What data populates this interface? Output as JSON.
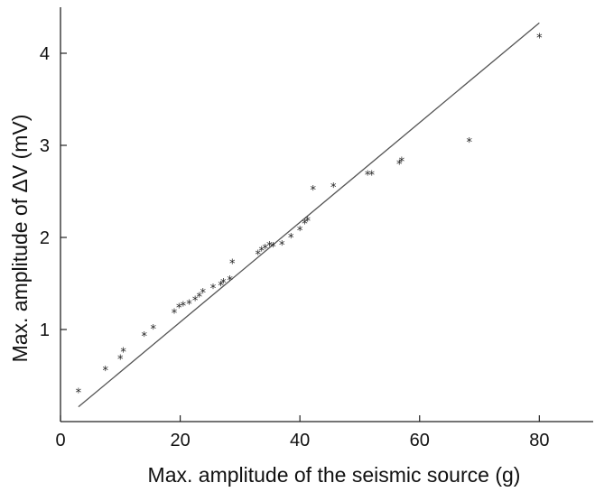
{
  "chart_data": {
    "type": "scatter",
    "title": "",
    "xlabel": "Max. amplitude of the seismic source (g)",
    "ylabel": "Max. amplitude of ΔV (mV)",
    "xlim": [
      0,
      89
    ],
    "ylim": [
      0,
      4.5
    ],
    "x_ticks": [
      0,
      20,
      40,
      60,
      80
    ],
    "y_ticks": [
      1,
      2,
      3,
      4
    ],
    "x_tick_labels": [
      "0",
      "20",
      "40",
      "60",
      "80"
    ],
    "y_tick_labels": [
      "1",
      "2",
      "3",
      "4"
    ],
    "grid": false,
    "marker": "*",
    "points": [
      {
        "x": 3,
        "y": 0.33
      },
      {
        "x": 7.5,
        "y": 0.57
      },
      {
        "x": 10,
        "y": 0.69
      },
      {
        "x": 10.5,
        "y": 0.77
      },
      {
        "x": 14,
        "y": 0.94
      },
      {
        "x": 15.5,
        "y": 1.02
      },
      {
        "x": 19,
        "y": 1.19
      },
      {
        "x": 19.8,
        "y": 1.25
      },
      {
        "x": 20.5,
        "y": 1.27
      },
      {
        "x": 21.5,
        "y": 1.29
      },
      {
        "x": 22.5,
        "y": 1.33
      },
      {
        "x": 23.2,
        "y": 1.37
      },
      {
        "x": 23.8,
        "y": 1.41
      },
      {
        "x": 25.5,
        "y": 1.46
      },
      {
        "x": 26.8,
        "y": 1.49
      },
      {
        "x": 27.2,
        "y": 1.52
      },
      {
        "x": 28.3,
        "y": 1.55
      },
      {
        "x": 28.7,
        "y": 1.73
      },
      {
        "x": 33,
        "y": 1.83
      },
      {
        "x": 33.6,
        "y": 1.87
      },
      {
        "x": 34.2,
        "y": 1.89
      },
      {
        "x": 34.9,
        "y": 1.92
      },
      {
        "x": 35.5,
        "y": 1.91
      },
      {
        "x": 37,
        "y": 1.93
      },
      {
        "x": 38.5,
        "y": 2.01
      },
      {
        "x": 40,
        "y": 2.09
      },
      {
        "x": 40.8,
        "y": 2.16
      },
      {
        "x": 41.3,
        "y": 2.19
      },
      {
        "x": 42.2,
        "y": 2.53
      },
      {
        "x": 45.6,
        "y": 2.56
      },
      {
        "x": 51.3,
        "y": 2.69
      },
      {
        "x": 52,
        "y": 2.69
      },
      {
        "x": 56.6,
        "y": 2.81
      },
      {
        "x": 57,
        "y": 2.84
      },
      {
        "x": 68.3,
        "y": 3.05
      },
      {
        "x": 80,
        "y": 4.18
      }
    ],
    "fit_line": {
      "x": [
        3,
        80
      ],
      "y": [
        0.16,
        4.33
      ]
    }
  }
}
